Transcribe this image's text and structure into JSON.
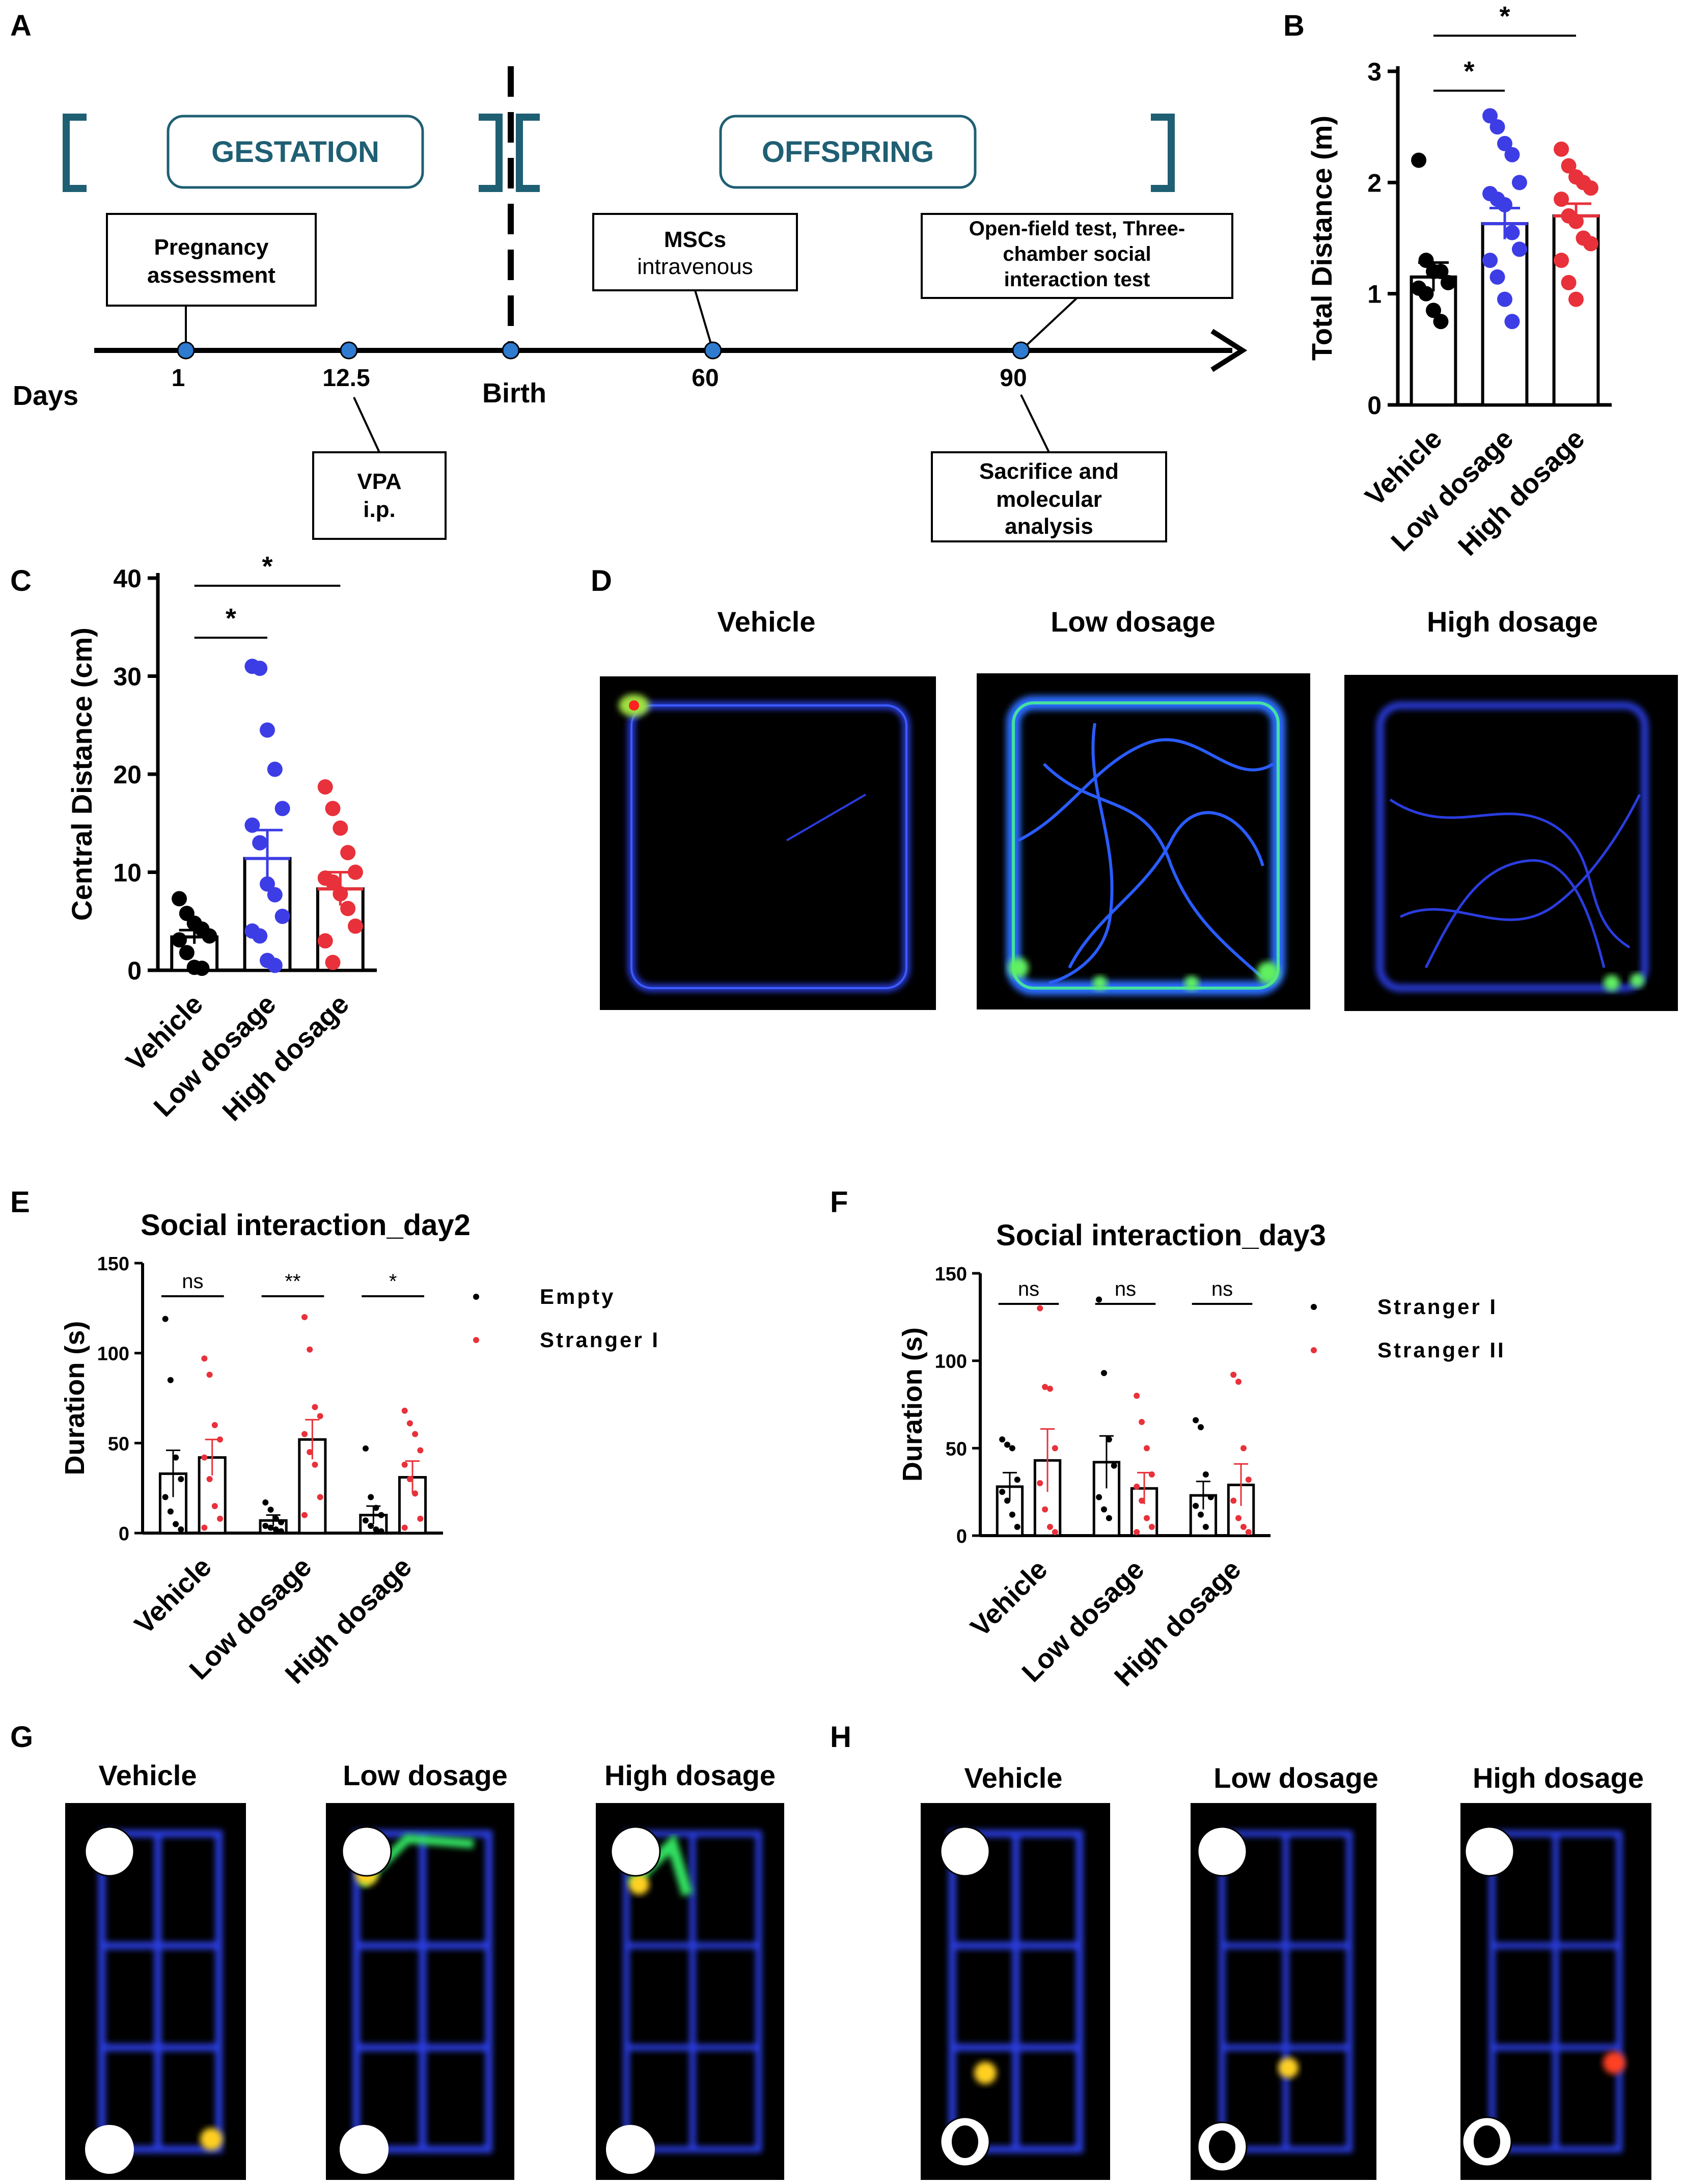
{
  "panel_labels": [
    "A",
    "B",
    "C",
    "D",
    "E",
    "F",
    "G",
    "H"
  ],
  "colors": {
    "vehicle": "#000000",
    "low": "#3d3de6",
    "high": "#e8313a",
    "teal": "#1f5f73",
    "timeline_node": "#2e7bd0"
  },
  "timeline": {
    "gestation": "GESTATION",
    "offspring": "OFFSPRING",
    "pregnancy": [
      "Pregnancy",
      "assessment"
    ],
    "mscs": [
      "MSCs",
      "intravenous"
    ],
    "openfield": [
      "Open-field test, Three-",
      "chamber social",
      "interaction test"
    ],
    "vpa": [
      "VPA",
      "i.p."
    ],
    "sacrifice": [
      "Sacrifice and",
      "molecular",
      "analysis"
    ],
    "days_label": "Days",
    "ticks": [
      "1",
      "12.5",
      "Birth",
      "60",
      "90"
    ]
  },
  "groups": [
    "Vehicle",
    "Low dosage",
    "High dosage"
  ],
  "significance": {
    "star": "*",
    "double_star": "**",
    "ns": "ns"
  },
  "chart_data": [
    {
      "id": "B",
      "type": "bar",
      "ylabel": "Total Distance (m)",
      "ylim": [
        0,
        3
      ],
      "yticks": [
        "0",
        "1",
        "2",
        "3"
      ],
      "categories": [
        "Vehicle",
        "Low dosage",
        "High dosage"
      ],
      "means": [
        1.15,
        1.63,
        1.7
      ],
      "sem": [
        0.13,
        0.14,
        0.11
      ],
      "points": [
        [
          2.2,
          1.3,
          1.2,
          1.2,
          1.1,
          1.05,
          1.0,
          0.85,
          0.75
        ],
        [
          2.6,
          2.5,
          2.35,
          2.25,
          2.0,
          1.9,
          1.85,
          1.8,
          1.55,
          1.4,
          1.3,
          1.15,
          0.95,
          0.75
        ],
        [
          2.3,
          2.15,
          2.05,
          2.0,
          1.95,
          1.85,
          1.7,
          1.65,
          1.5,
          1.45,
          1.3,
          1.1,
          0.95
        ]
      ],
      "comparisons": [
        {
          "from": 0,
          "to": 1,
          "label": "*"
        },
        {
          "from": 0,
          "to": 2,
          "label": "*"
        }
      ]
    },
    {
      "id": "C",
      "type": "bar",
      "ylabel": "Central Distance (cm)",
      "ylim": [
        0,
        40
      ],
      "yticks": [
        "0",
        "10",
        "20",
        "30",
        "40"
      ],
      "categories": [
        "Vehicle",
        "Low dosage",
        "High dosage"
      ],
      "means": [
        3.4,
        11.4,
        8.3
      ],
      "sem": [
        0.7,
        2.9,
        1.7
      ],
      "points": [
        [
          7.3,
          5.8,
          4.8,
          4.2,
          3.5,
          3.1,
          1.8,
          0.3,
          0.2
        ],
        [
          31,
          30.8,
          24.5,
          20.5,
          16.5,
          14.8,
          13.0,
          8.8,
          7.7,
          5.5,
          4.0,
          3.5,
          1.0,
          0.5
        ],
        [
          18.7,
          16.5,
          14.5,
          12.0,
          10.0,
          9.4,
          9.0,
          7.8,
          6.3,
          4.5,
          3.0,
          0.8
        ]
      ],
      "comparisons": [
        {
          "from": 0,
          "to": 1,
          "label": "*"
        },
        {
          "from": 0,
          "to": 2,
          "label": "*"
        }
      ]
    },
    {
      "id": "E",
      "type": "bar",
      "title": "Social interaction_day2",
      "ylabel": "Duration (s)",
      "ylim": [
        0,
        150
      ],
      "yticks": [
        "0",
        "50",
        "100",
        "150"
      ],
      "categories": [
        "Vehicle",
        "Low dosage",
        "High dosage"
      ],
      "legend": [
        "Empty",
        "Stranger I"
      ],
      "series": [
        {
          "name": "Empty",
          "means": [
            33,
            7,
            10
          ],
          "sem": [
            13,
            3,
            5
          ],
          "points": [
            [
              119,
              85,
              42,
              30,
              20,
              12,
              5,
              2
            ],
            [
              17,
              13,
              8,
              6,
              4,
              3,
              2,
              1
            ],
            [
              47,
              20,
              14,
              10,
              7,
              4,
              2,
              1
            ]
          ]
        },
        {
          "name": "Stranger I",
          "means": [
            42,
            52,
            31
          ],
          "sem": [
            10,
            11,
            9
          ],
          "points": [
            [
              97,
              88,
              60,
              52,
              42,
              30,
              15,
              8,
              3
            ],
            [
              120,
              102,
              70,
              65,
              55,
              45,
              38,
              20,
              10
            ],
            [
              68,
              61,
              55,
              46,
              38,
              30,
              22,
              8,
              3
            ]
          ]
        }
      ],
      "comparisons": [
        "ns",
        "**",
        "*"
      ]
    },
    {
      "id": "F",
      "type": "bar",
      "title": "Social interaction_day3",
      "ylabel": "Duration (s)",
      "ylim": [
        0,
        150
      ],
      "yticks": [
        "0",
        "50",
        "100",
        "150"
      ],
      "categories": [
        "Vehicle",
        "Low dosage",
        "High dosage"
      ],
      "legend": [
        "Stranger I",
        "Stranger II"
      ],
      "series": [
        {
          "name": "Stranger I",
          "means": [
            28,
            42,
            23
          ],
          "sem": [
            8,
            15,
            8
          ],
          "points": [
            [
              55,
              52,
              50,
              32,
              25,
              20,
              12,
              5
            ],
            [
              135,
              93,
              55,
              40,
              22,
              15,
              10
            ],
            [
              66,
              62,
              35,
              22,
              17,
              12,
              5
            ]
          ]
        },
        {
          "name": "Stranger II",
          "means": [
            43,
            27,
            29
          ],
          "sem": [
            18,
            9,
            12
          ],
          "points": [
            [
              130,
              85,
              84,
              50,
              30,
              15,
              5,
              2
            ],
            [
              80,
              65,
              50,
              35,
              28,
              20,
              10,
              5,
              2
            ],
            [
              92,
              88,
              50,
              32,
              20,
              10,
              5,
              2
            ]
          ]
        }
      ],
      "comparisons": [
        "ns",
        "ns",
        "ns"
      ]
    }
  ]
}
